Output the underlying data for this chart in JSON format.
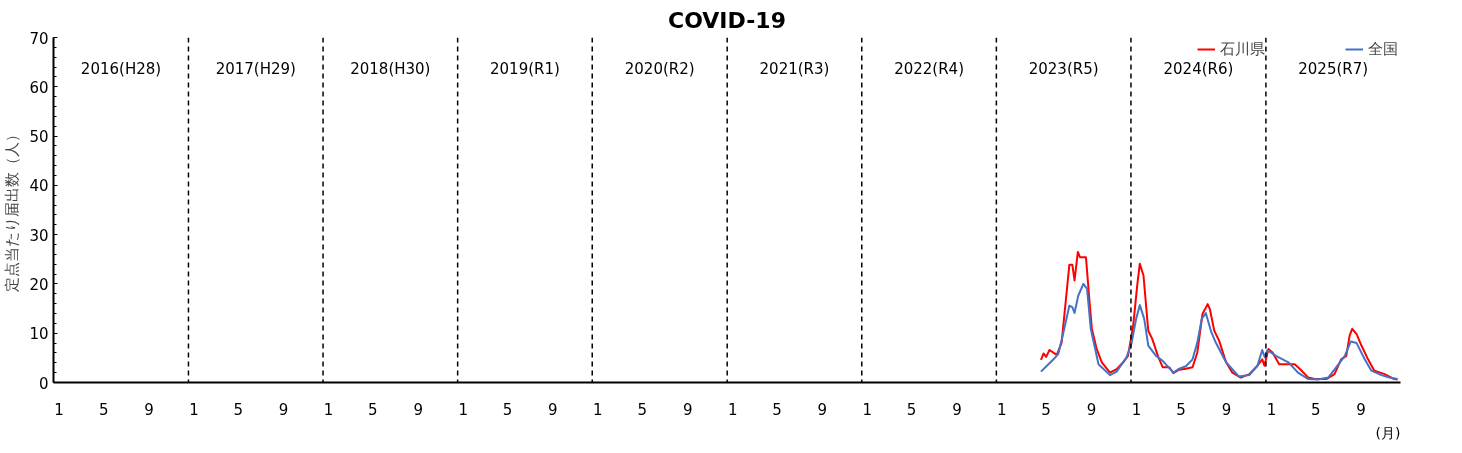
{
  "chart_data": {
    "type": "line",
    "title": "COVID-19",
    "xlabel": "(月)",
    "ylabel": "定点当たり届出数（人）",
    "xlim": [
      "2016-01-01",
      "2026-01-01"
    ],
    "ylim": [
      0,
      70
    ],
    "yticks": [
      0,
      10,
      20,
      30,
      40,
      50,
      60,
      70
    ],
    "xticks": [
      {
        "value": "2016-01-16",
        "label": "1"
      },
      {
        "value": "2016-05-16",
        "label": "5"
      },
      {
        "value": "2016-09-16",
        "label": "9"
      },
      {
        "value": "2017-01-16",
        "label": "1"
      },
      {
        "value": "2017-05-16",
        "label": "5"
      },
      {
        "value": "2017-09-16",
        "label": "9"
      },
      {
        "value": "2018-01-16",
        "label": "1"
      },
      {
        "value": "2018-05-16",
        "label": "5"
      },
      {
        "value": "2018-09-16",
        "label": "9"
      },
      {
        "value": "2019-01-16",
        "label": "1"
      },
      {
        "value": "2019-05-16",
        "label": "5"
      },
      {
        "value": "2019-09-16",
        "label": "9"
      },
      {
        "value": "2020-01-16",
        "label": "1"
      },
      {
        "value": "2020-05-16",
        "label": "5"
      },
      {
        "value": "2020-09-16",
        "label": "9"
      },
      {
        "value": "2021-01-16",
        "label": "1"
      },
      {
        "value": "2021-05-16",
        "label": "5"
      },
      {
        "value": "2021-09-16",
        "label": "9"
      },
      {
        "value": "2022-01-16",
        "label": "1"
      },
      {
        "value": "2022-05-16",
        "label": "5"
      },
      {
        "value": "2022-09-16",
        "label": "9"
      },
      {
        "value": "2023-01-16",
        "label": "1"
      },
      {
        "value": "2023-05-16",
        "label": "5"
      },
      {
        "value": "2023-09-16",
        "label": "9"
      },
      {
        "value": "2024-01-16",
        "label": "1"
      },
      {
        "value": "2024-05-16",
        "label": "5"
      },
      {
        "value": "2024-09-16",
        "label": "9"
      },
      {
        "value": "2025-01-16",
        "label": "1"
      },
      {
        "value": "2025-05-16",
        "label": "5"
      },
      {
        "value": "2025-09-16",
        "label": "9"
      }
    ],
    "grid": false,
    "legend": "top right",
    "marker": "none",
    "line_style": "solid",
    "series": [
      {
        "name": "石川県",
        "color": "#ff0000",
        "x": [
          "2023-05-02",
          "2023-05-09",
          "2023-05-16",
          "2023-05-25",
          "2023-06-14",
          "2023-06-27",
          "2023-07-06",
          "2023-07-18",
          "2023-07-26",
          "2023-08-01",
          "2023-08-10",
          "2023-08-16",
          "2023-09-01",
          "2023-09-10",
          "2023-09-17",
          "2023-09-30",
          "2023-10-14",
          "2023-11-05",
          "2023-11-23",
          "2023-12-11",
          "2023-12-24",
          "2024-01-07",
          "2024-01-18",
          "2024-01-25",
          "2024-02-04",
          "2024-02-17",
          "2024-02-28",
          "2024-03-14",
          "2024-03-27",
          "2024-04-14",
          "2024-04-25",
          "2024-05-11",
          "2024-05-29",
          "2024-06-16",
          "2024-06-29",
          "2024-07-13",
          "2024-07-27",
          "2024-08-02",
          "2024-08-14",
          "2024-08-27",
          "2024-09-15",
          "2024-10-02",
          "2024-10-25",
          "2024-11-17",
          "2024-12-09",
          "2024-12-22",
          "2024-12-28",
          "2025-01-08",
          "2025-01-19",
          "2025-02-06",
          "2025-03-03",
          "2025-03-20",
          "2025-04-04",
          "2025-04-26",
          "2025-05-13",
          "2025-06-14",
          "2025-07-06",
          "2025-07-24",
          "2025-08-07",
          "2025-08-16",
          "2025-08-23",
          "2025-09-04",
          "2025-09-17",
          "2025-10-05",
          "2025-10-22",
          "2025-11-19",
          "2025-12-15",
          "2025-12-24"
        ],
        "values": [
          4.6,
          5.9,
          5.2,
          6.6,
          5.6,
          8.1,
          14.9,
          23.9,
          23.9,
          20.7,
          26.5,
          25.4,
          25.4,
          17.0,
          10.9,
          6.8,
          4.1,
          2.0,
          2.7,
          4.1,
          5.4,
          11.5,
          19.7,
          24.1,
          21.7,
          10.5,
          8.8,
          5.4,
          3.1,
          3.1,
          1.9,
          2.6,
          2.8,
          3.1,
          6.1,
          13.9,
          15.9,
          14.9,
          10.5,
          8.5,
          4.1,
          2.0,
          1.0,
          1.7,
          3.4,
          4.7,
          3.4,
          6.8,
          6.1,
          3.7,
          3.7,
          3.7,
          2.7,
          1.0,
          0.7,
          0.7,
          1.7,
          4.7,
          5.4,
          9.5,
          10.9,
          9.8,
          7.5,
          4.7,
          2.4,
          1.7,
          0.7,
          0.6
        ]
      },
      {
        "name": "全国",
        "color": "#4472c4",
        "x": [
          "2023-05-02",
          "2023-05-18",
          "2023-06-05",
          "2023-06-18",
          "2023-07-02",
          "2023-07-18",
          "2023-07-26",
          "2023-08-01",
          "2023-08-11",
          "2023-08-25",
          "2023-09-04",
          "2023-09-14",
          "2023-10-05",
          "2023-11-05",
          "2023-11-23",
          "2023-12-20",
          "2024-01-03",
          "2024-01-15",
          "2024-01-25",
          "2024-02-06",
          "2024-02-17",
          "2024-03-09",
          "2024-03-27",
          "2024-04-25",
          "2024-05-11",
          "2024-05-29",
          "2024-06-16",
          "2024-06-29",
          "2024-07-11",
          "2024-07-22",
          "2024-08-06",
          "2024-08-18",
          "2024-09-15",
          "2024-10-20",
          "2024-11-17",
          "2024-12-09",
          "2024-12-22",
          "2024-12-29",
          "2025-01-05",
          "2025-01-28",
          "2025-03-03",
          "2025-03-29",
          "2025-04-26",
          "2025-05-22",
          "2025-06-19",
          "2025-07-11",
          "2025-08-03",
          "2025-08-19",
          "2025-09-04",
          "2025-09-26",
          "2025-10-14",
          "2025-11-10",
          "2025-12-02",
          "2025-12-24"
        ],
        "values": [
          2.2,
          3.4,
          4.7,
          5.8,
          10.2,
          15.6,
          15.3,
          14.1,
          17.6,
          20.0,
          19.0,
          10.9,
          3.7,
          1.5,
          2.2,
          5.1,
          8.1,
          12.9,
          15.7,
          12.9,
          7.5,
          5.4,
          4.4,
          2.0,
          2.8,
          3.3,
          4.7,
          8.1,
          12.9,
          14.1,
          10.2,
          8.1,
          4.1,
          1.2,
          1.5,
          3.4,
          6.6,
          5.1,
          6.6,
          5.4,
          4.1,
          2.0,
          0.7,
          0.6,
          1.0,
          3.1,
          5.4,
          8.3,
          8.0,
          4.7,
          2.4,
          1.5,
          1.0,
          0.7
        ]
      }
    ],
    "ref_lines": [
      {
        "axis": "x",
        "value": "2017-01-01",
        "line_style": "dashed",
        "color": "#000000"
      },
      {
        "axis": "x",
        "value": "2018-01-01",
        "line_style": "dashed",
        "color": "#000000"
      },
      {
        "axis": "x",
        "value": "2019-01-01",
        "line_style": "dashed",
        "color": "#000000"
      },
      {
        "axis": "x",
        "value": "2020-01-01",
        "line_style": "dashed",
        "color": "#000000"
      },
      {
        "axis": "x",
        "value": "2021-01-01",
        "line_style": "dashed",
        "color": "#000000"
      },
      {
        "axis": "x",
        "value": "2022-01-01",
        "line_style": "dashed",
        "color": "#000000"
      },
      {
        "axis": "x",
        "value": "2023-01-01",
        "line_style": "dashed",
        "color": "#000000"
      },
      {
        "axis": "x",
        "value": "2024-01-01",
        "line_style": "dashed",
        "color": "#000000"
      },
      {
        "axis": "x",
        "value": "2025-01-01",
        "line_style": "dashed",
        "color": "#000000"
      }
    ],
    "annotations": [
      "2016(H28)",
      "2017(H29)",
      "2018(H30)",
      "2019(R1)",
      "2020(R2)",
      "2021(R3)",
      "2022(R4)",
      "2023(R5)",
      "2024(R6)",
      "2025(R7)"
    ]
  }
}
